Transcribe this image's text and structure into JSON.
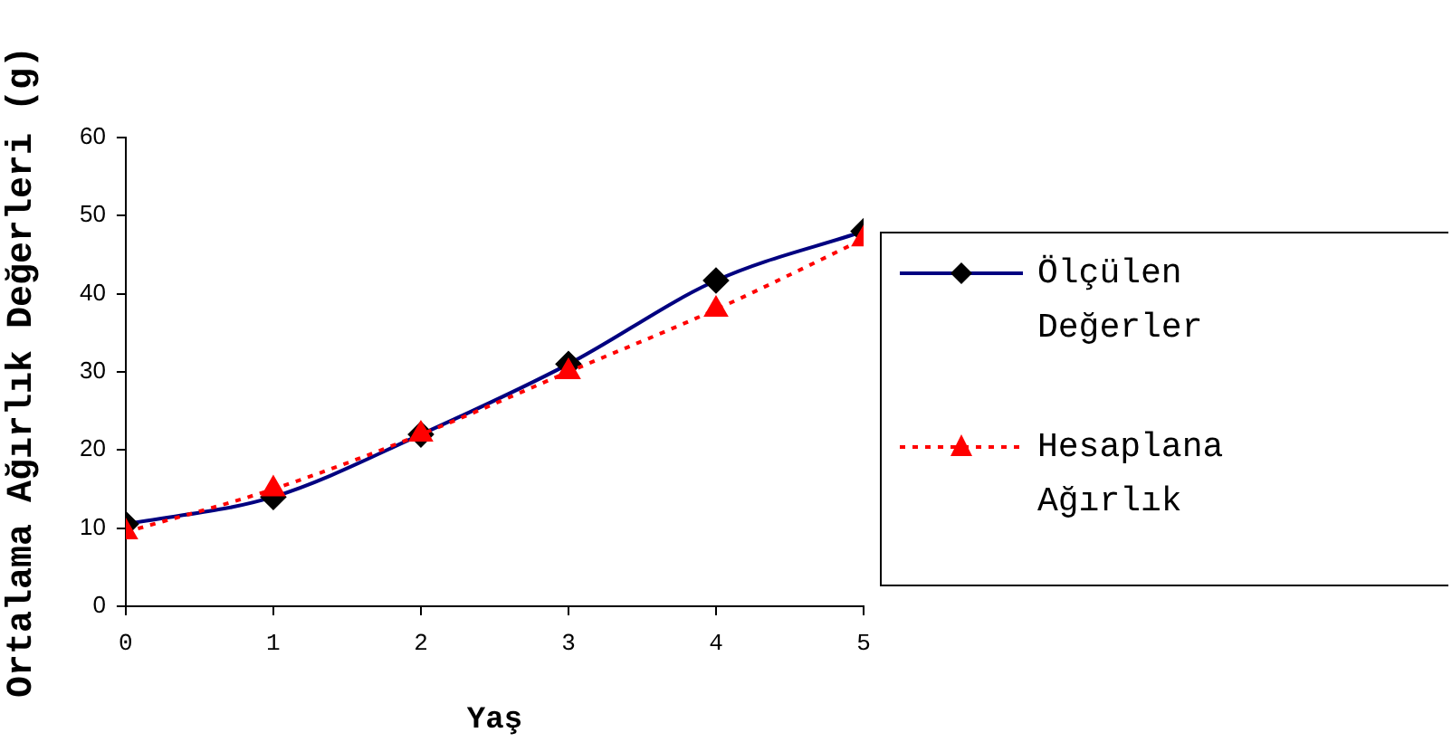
{
  "chart_data": {
    "type": "line",
    "xlabel": "Yaş",
    "ylabel": "Ortalama Ağırlık Değerleri (g)",
    "x": [
      0,
      1,
      2,
      3,
      4,
      5
    ],
    "xlim": [
      0,
      5
    ],
    "xticks": [
      0,
      1,
      2,
      3,
      4,
      5
    ],
    "ylim": [
      0,
      60
    ],
    "yticks": [
      0,
      10,
      20,
      30,
      40,
      50,
      60
    ],
    "grid": false,
    "legend": "right",
    "series": [
      {
        "name": "Ölçülen Değerler",
        "color": "#000080",
        "marker": "diamond",
        "line_style": "solid",
        "values": [
          10.5,
          14,
          22,
          31,
          41.7,
          48
        ]
      },
      {
        "name": "Hesaplana Ağırlık",
        "color": "#ff0000",
        "marker": "triangle",
        "line_style": "dotted",
        "values": [
          9.5,
          15,
          22,
          30,
          38,
          47
        ]
      }
    ]
  }
}
